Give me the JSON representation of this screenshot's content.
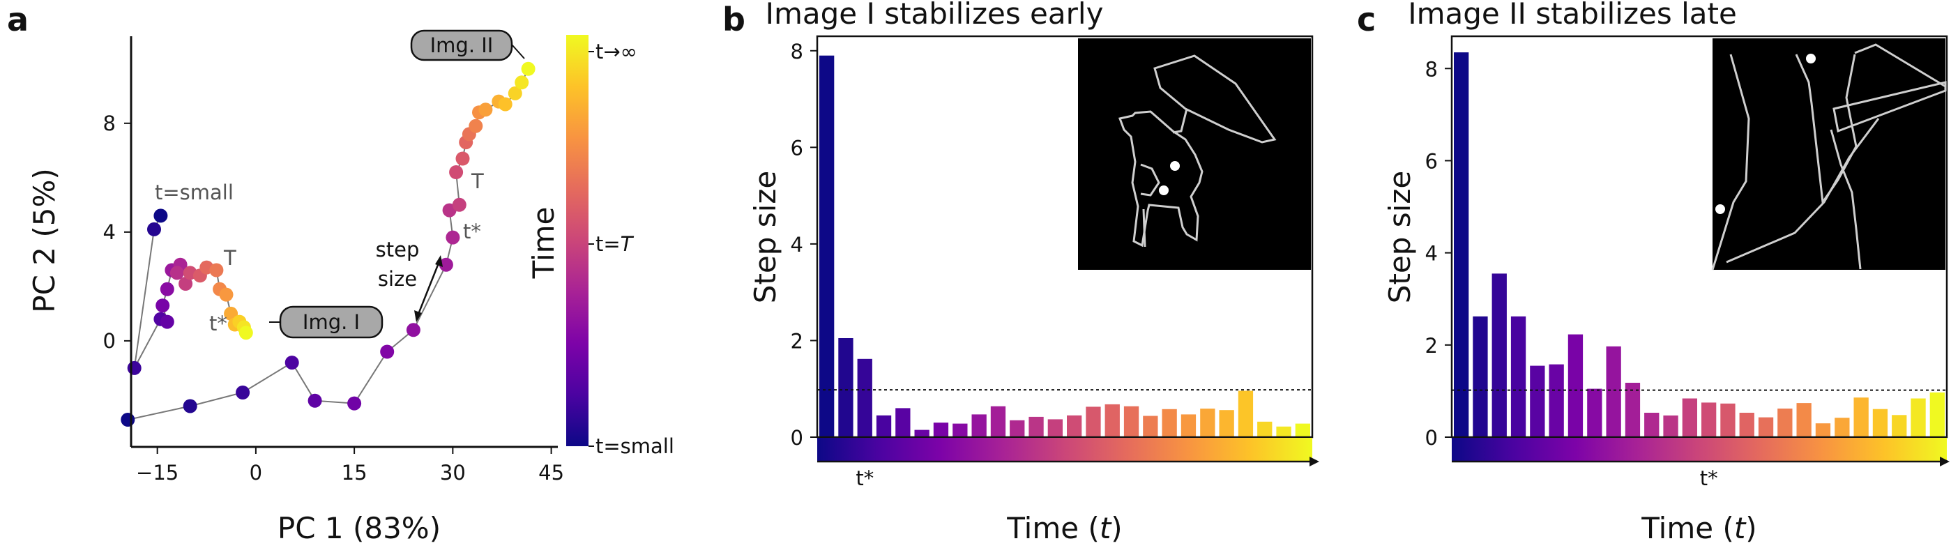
{
  "figure": {
    "panel_labels": [
      "a",
      "b",
      "c"
    ],
    "colormap": [
      "#0d0887",
      "#4b03a1",
      "#7d03a8",
      "#a82296",
      "#cb4679",
      "#e56b5d",
      "#f89441",
      "#fdc328",
      "#f0f921"
    ]
  },
  "chart_data": [
    {
      "type": "scatter",
      "panel": "a",
      "xlabel": "PC 1 (83%)",
      "ylabel": "PC 2 (5%)",
      "xlim": [
        -19,
        46
      ],
      "ylim": [
        -3.9,
        11.2
      ],
      "xticks": [
        -15,
        0,
        15,
        30,
        45
      ],
      "yticks": [
        0,
        4,
        8
      ],
      "xtick_labels": [
        "−15",
        "0",
        "15",
        "30",
        "45"
      ],
      "ytick_labels": [
        "0",
        "4",
        "8"
      ],
      "colorbar": {
        "label": "Time",
        "tick_top": "t→∞",
        "tick_mid_prefix": "t=",
        "tick_mid_italic": "T",
        "tick_bottom": "t=small"
      },
      "annotations": {
        "t_small": "t=small",
        "T_label": "T",
        "t_star": "t*",
        "step_size_line1": "step",
        "step_size_line2": "size",
        "img1": "Img. I",
        "img2": "Img. II"
      },
      "series": [
        {
          "name": "Img. I",
          "x": [
            -14.5,
            -15.5,
            -18.5,
            -14.5,
            -13.5,
            -14.2,
            -13.5,
            -12.8,
            -11.5,
            -12.0,
            -10.7,
            -10.0,
            -8.5,
            -7.5,
            -6.0,
            -5.5,
            -4.5,
            -3.8,
            -3.2,
            -2.5,
            -1.8,
            -1.5
          ],
          "y": [
            4.6,
            4.1,
            -1.0,
            0.8,
            0.7,
            1.3,
            1.9,
            2.6,
            2.8,
            2.5,
            2.1,
            2.5,
            2.4,
            2.7,
            2.6,
            1.9,
            1.7,
            1.0,
            0.6,
            0.7,
            0.5,
            0.3
          ]
        },
        {
          "name": "Img. II",
          "x": [
            -19.5,
            -10.0,
            -2.0,
            5.5,
            9.0,
            15.0,
            20.0,
            24.0,
            29.0,
            30.0,
            29.5,
            31.0,
            30.5,
            31.5,
            32.0,
            32.5,
            33.5,
            34.0,
            35.0,
            37.0,
            38.0,
            39.5,
            40.5,
            41.5
          ],
          "y": [
            -2.9,
            -2.4,
            -1.9,
            -0.8,
            -2.2,
            -2.3,
            -0.4,
            0.4,
            2.8,
            3.8,
            4.8,
            5.0,
            6.2,
            6.7,
            7.3,
            7.6,
            7.9,
            8.4,
            8.5,
            8.8,
            8.7,
            9.1,
            9.5,
            10.0
          ]
        }
      ]
    },
    {
      "type": "bar",
      "panel": "b",
      "title": "Image I stabilizes early",
      "xlabel_prefix": "Time (",
      "xlabel_italic": "t",
      "xlabel_suffix": ")",
      "ylabel": "Step size",
      "ylim": [
        0,
        8.3
      ],
      "yticks": [
        0,
        2,
        4,
        6,
        8
      ],
      "ytick_labels": [
        "0",
        "2",
        "4",
        "6",
        "8"
      ],
      "threshold": 0.98,
      "t_star_label": "t*",
      "t_star_index": 2,
      "values": [
        7.9,
        2.05,
        1.62,
        0.45,
        0.6,
        0.15,
        0.3,
        0.28,
        0.47,
        0.64,
        0.35,
        0.42,
        0.37,
        0.45,
        0.63,
        0.68,
        0.64,
        0.44,
        0.58,
        0.47,
        0.59,
        0.56,
        0.96,
        0.32,
        0.22,
        0.28
      ]
    },
    {
      "type": "bar",
      "panel": "c",
      "title": "Image II stabilizes late",
      "xlabel_prefix": "Time (",
      "xlabel_italic": "t",
      "xlabel_suffix": ")",
      "ylabel": "Step size",
      "ylim": [
        0,
        8.7
      ],
      "yticks": [
        0,
        2,
        4,
        6,
        8
      ],
      "ytick_labels": [
        "0",
        "2",
        "4",
        "6",
        "8"
      ],
      "threshold": 1.02,
      "t_star_label": "t*",
      "t_star_index": 13,
      "values": [
        8.35,
        2.62,
        3.55,
        2.62,
        1.55,
        1.58,
        2.23,
        1.05,
        1.97,
        1.18,
        0.53,
        0.47,
        0.84,
        0.75,
        0.73,
        0.53,
        0.43,
        0.62,
        0.74,
        0.3,
        0.42,
        0.86,
        0.61,
        0.48,
        0.84,
        0.97
      ]
    }
  ]
}
